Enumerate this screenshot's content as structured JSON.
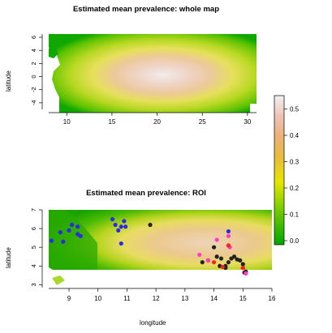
{
  "top_panel": {
    "title": "Estimated mean prevalence: whole map",
    "ylabel": "latitude",
    "x_ticks": [
      "10",
      "15",
      "20",
      "25",
      "30"
    ],
    "y_ticks": [
      "-4",
      "-2",
      "0",
      "2",
      "4",
      "6"
    ]
  },
  "bottom_panel": {
    "title": "Estimated mean prevalence: ROI",
    "ylabel": "latitude",
    "xlabel": "longitude",
    "x_ticks": [
      "9",
      "10",
      "11",
      "12",
      "13",
      "14",
      "15",
      "16"
    ],
    "y_ticks": [
      "3",
      "4",
      "5",
      "6",
      "7"
    ]
  },
  "colorbar": {
    "ticks": [
      "0.0",
      "0.1",
      "0.2",
      "0.3",
      "0.4",
      "0.5"
    ],
    "range": [
      0,
      0.55
    ],
    "colors": [
      "#00a600",
      "#63c600",
      "#e6e600",
      "#e9bd3a",
      "#ecb176",
      "#efc2b3",
      "#f2f2f2"
    ]
  },
  "points": {
    "blue": [
      [
        8.4,
        5.35
      ],
      [
        8.7,
        5.8
      ],
      [
        8.8,
        5.3
      ],
      [
        9.0,
        5.9
      ],
      [
        9.1,
        6.2
      ],
      [
        9.3,
        5.7
      ],
      [
        9.3,
        6.1
      ],
      [
        9.4,
        5.6
      ],
      [
        10.5,
        6.5
      ],
      [
        10.6,
        6.2
      ],
      [
        10.8,
        6.1
      ],
      [
        10.9,
        6.4
      ],
      [
        10.95,
        6.1
      ],
      [
        10.7,
        5.9
      ],
      [
        10.8,
        5.2
      ],
      [
        14.5,
        5.85
      ]
    ],
    "black": [
      [
        11.8,
        6.2
      ],
      [
        13.6,
        4.2
      ],
      [
        13.8,
        4.3
      ],
      [
        14.0,
        5.0
      ],
      [
        14.1,
        4.5
      ],
      [
        14.2,
        4.0
      ],
      [
        14.25,
        4.4
      ],
      [
        14.4,
        4.0
      ],
      [
        14.4,
        3.9
      ],
      [
        14.5,
        4.2
      ],
      [
        14.6,
        4.4
      ],
      [
        14.7,
        4.5
      ],
      [
        14.8,
        4.35
      ],
      [
        14.9,
        4.3
      ],
      [
        15.0,
        3.9
      ],
      [
        15.0,
        4.1
      ],
      [
        15.1,
        3.7
      ],
      [
        15.05,
        3.65
      ]
    ],
    "pink": [
      [
        13.5,
        4.6
      ],
      [
        13.8,
        4.3
      ],
      [
        14.1,
        5.4
      ],
      [
        14.5,
        5.6
      ],
      [
        14.55,
        5.0
      ],
      [
        15.1,
        3.6
      ]
    ],
    "red": [
      [
        14.0,
        4.2
      ],
      [
        14.3,
        3.95
      ],
      [
        14.5,
        5.1
      ],
      [
        15.0,
        3.9
      ]
    ]
  }
}
